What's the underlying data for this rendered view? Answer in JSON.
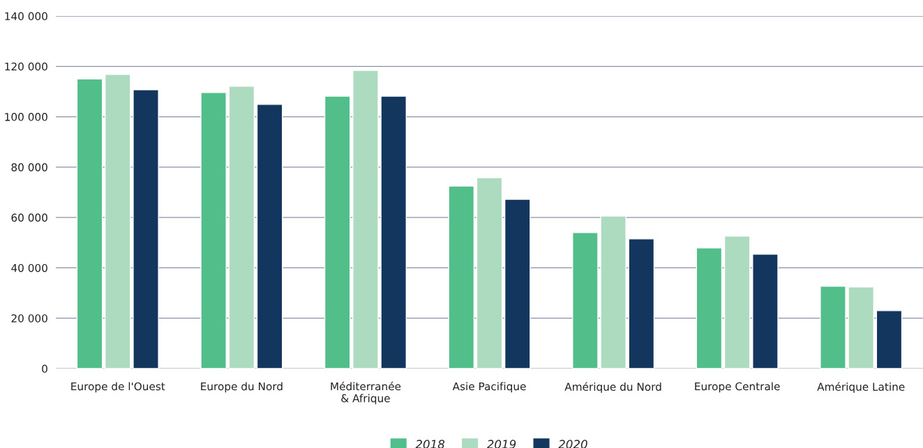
{
  "chart_data": {
    "type": "bar",
    "categories": [
      "Europe de l'Ouest",
      "Europe du Nord",
      "Méditerranée\n& Afrique",
      "Asie Pacifique",
      "Amérique du Nord",
      "Europe Centrale",
      "Amérique Latine"
    ],
    "series": [
      {
        "name": "2018",
        "color": "#52be8a",
        "values": [
          115000,
          109600,
          108200,
          72500,
          54000,
          47900,
          32700
        ]
      },
      {
        "name": "2019",
        "color": "#acdbc0",
        "values": [
          116800,
          112100,
          118400,
          75800,
          60600,
          52600,
          32400
        ]
      },
      {
        "name": "2020",
        "color": "#13365e",
        "values": [
          110700,
          104900,
          108200,
          67200,
          51500,
          45400,
          23000
        ]
      }
    ],
    "ylim": [
      0,
      140000
    ],
    "yticks": [
      {
        "value": 0,
        "label": "0"
      },
      {
        "value": 20000,
        "label": "20 000"
      },
      {
        "value": 40000,
        "label": "40 000"
      },
      {
        "value": 60000,
        "label": "60 000"
      },
      {
        "value": 80000,
        "label": "80 000"
      },
      {
        "value": 100000,
        "label": "100 000"
      },
      {
        "value": 120000,
        "label": "120 000"
      },
      {
        "value": 140000,
        "label": "140 000"
      }
    ],
    "grid": "y",
    "legend": "bottom"
  }
}
